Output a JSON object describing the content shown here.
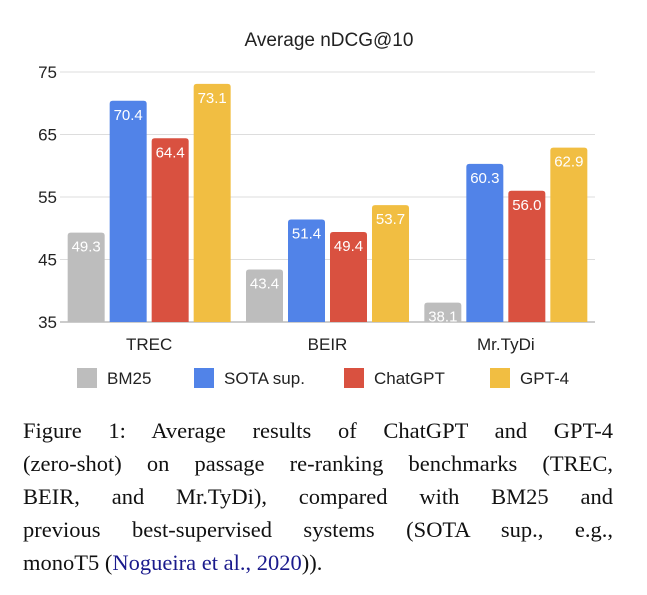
{
  "chart_data": {
    "type": "bar",
    "title": "Average nDCG@10",
    "categories": [
      "TREC",
      "BEIR",
      "Mr.TyDi"
    ],
    "series": [
      {
        "name": "BM25",
        "color": "#bdbdbd",
        "values": [
          49.3,
          43.4,
          38.1
        ]
      },
      {
        "name": "SOTA sup.",
        "color": "#5183e8",
        "values": [
          70.4,
          51.4,
          60.3
        ]
      },
      {
        "name": "ChatGPT",
        "color": "#d95140",
        "values": [
          64.4,
          49.4,
          56.0
        ]
      },
      {
        "name": "GPT-4",
        "color": "#f1be42",
        "values": [
          73.1,
          53.7,
          62.9
        ]
      }
    ],
    "yticks": [
      "35",
      "45",
      "55",
      "65",
      "75"
    ],
    "ylim": [
      35,
      75
    ],
    "grid": true,
    "legend": "bottom",
    "xlabel": "",
    "ylabel": ""
  },
  "caption": {
    "lines": [
      "Figure 1:  Average results of ChatGPT and GPT-4",
      "(zero-shot) on passage re-ranking benchmarks (TREC,",
      "BEIR, and Mr.TyDi), compared with BM25 and",
      "previous best-supervised systems (SOTA sup., e.g.,"
    ],
    "last_prefix": "monoT5 (",
    "citation": "Nogueira et al., 2020",
    "last_suffix": "))."
  }
}
